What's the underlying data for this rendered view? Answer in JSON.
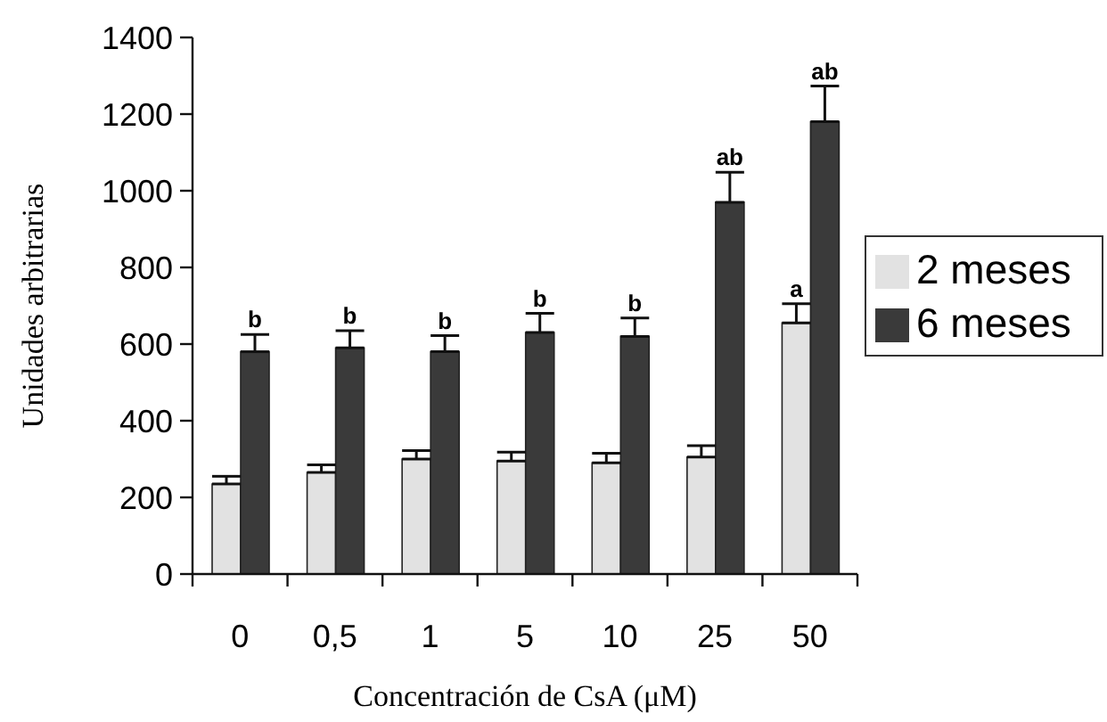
{
  "chart_data": {
    "type": "bar",
    "xlabel": "Concentración de CsA (μM)",
    "ylabel": "Unidades arbitrarias",
    "categories": [
      "0",
      "0,5",
      "1",
      "5",
      "10",
      "25",
      "50"
    ],
    "series": [
      {
        "name": "2 meses",
        "color": "#e2e2e2",
        "values": [
          235,
          265,
          300,
          295,
          290,
          305,
          655
        ],
        "errors": [
          [
            235,
            255
          ],
          [
            265,
            285
          ],
          [
            300,
            322
          ],
          [
            295,
            318
          ],
          [
            290,
            315
          ],
          [
            305,
            335
          ],
          [
            655,
            705
          ]
        ]
      },
      {
        "name": "6 meses",
        "color": "#3a3a3a",
        "values": [
          580,
          590,
          580,
          630,
          620,
          970,
          1180
        ],
        "errors": [
          [
            580,
            625
          ],
          [
            590,
            635
          ],
          [
            580,
            622
          ],
          [
            630,
            680
          ],
          [
            620,
            668
          ],
          [
            970,
            1048
          ],
          [
            1180,
            1273
          ]
        ]
      }
    ],
    "ylim": [
      0,
      1400
    ],
    "yticks": [
      0,
      200,
      400,
      600,
      800,
      1000,
      1200,
      1400
    ],
    "legend": "right",
    "annotations": [
      {
        "text": "b",
        "x": "0",
        "y": 625
      },
      {
        "text": "b",
        "x": "0,5",
        "y": 635
      },
      {
        "text": "b",
        "x": "1",
        "y": 622
      },
      {
        "text": "b",
        "x": "5",
        "y": 680
      },
      {
        "text": "b",
        "x": "10",
        "y": 668
      },
      {
        "text": "ab",
        "x": "25",
        "y": 1048
      },
      {
        "text": "a",
        "x": "50",
        "y": 705
      },
      {
        "text": "ab",
        "x": "50",
        "y": 1273
      }
    ]
  }
}
